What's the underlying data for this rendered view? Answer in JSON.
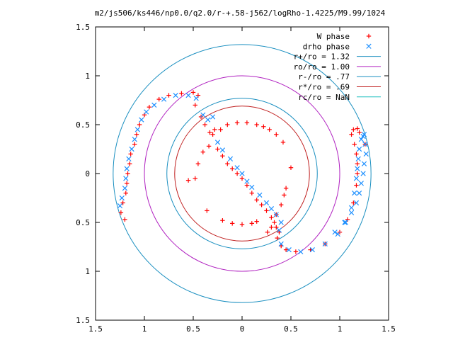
{
  "chart_data": {
    "type": "scatter",
    "title": "m2/js506/ks446/np0.0/q2.0/r-+.58-j562/logRho-1.4225/M9.99/1024",
    "xlim": [
      -1.5,
      1.5
    ],
    "ylim": [
      -1.5,
      1.5
    ],
    "x_ticks": [
      -1.5,
      -1,
      -0.5,
      0,
      0.5,
      1,
      1.5
    ],
    "x_tick_labels": [
      "1.5",
      "1",
      "0.5",
      "0",
      "0.5",
      "1",
      "1.5"
    ],
    "y_ticks": [
      1.5,
      1,
      0.5,
      0,
      -0.5,
      -1,
      -1.5
    ],
    "y_tick_labels": [
      "1.5",
      "1",
      "0.5",
      "0",
      "0.5",
      "1",
      "1.5"
    ],
    "grid": false,
    "legend_position": "top-right",
    "point_series": [
      {
        "name": "W phase",
        "marker": "+",
        "color": "#ff0000",
        "points": [
          [
            -1.2,
            -0.47
          ],
          [
            -1.24,
            -0.4
          ],
          [
            -1.22,
            -0.3
          ],
          [
            -1.19,
            -0.2
          ],
          [
            -1.18,
            -0.1
          ],
          [
            -1.17,
            0.0
          ],
          [
            -1.15,
            0.1
          ],
          [
            -1.14,
            0.2
          ],
          [
            -1.1,
            0.3
          ],
          [
            -1.08,
            0.4
          ],
          [
            -1.05,
            0.5
          ],
          [
            -1.0,
            0.6
          ],
          [
            -0.95,
            0.68
          ],
          [
            -0.85,
            0.76
          ],
          [
            -0.75,
            0.8
          ],
          [
            -0.62,
            0.82
          ],
          [
            -0.5,
            0.83
          ],
          [
            -0.45,
            0.8
          ],
          [
            -0.48,
            0.7
          ],
          [
            -0.42,
            0.58
          ],
          [
            -0.38,
            0.5
          ],
          [
            -0.33,
            0.42
          ],
          [
            -0.25,
            0.25
          ],
          [
            -0.2,
            0.18
          ],
          [
            -0.15,
            0.1
          ],
          [
            -0.1,
            0.05
          ],
          [
            -0.05,
            0.0
          ],
          [
            0.0,
            -0.05
          ],
          [
            0.05,
            -0.12
          ],
          [
            0.1,
            -0.2
          ],
          [
            0.15,
            -0.27
          ],
          [
            0.2,
            -0.32
          ],
          [
            0.25,
            -0.38
          ],
          [
            0.3,
            -0.45
          ],
          [
            0.33,
            -0.5
          ],
          [
            0.3,
            -0.55
          ],
          [
            0.26,
            -0.6
          ],
          [
            -0.28,
            0.45
          ],
          [
            -0.3,
            0.4
          ],
          [
            -0.34,
            0.28
          ],
          [
            -0.4,
            0.22
          ],
          [
            -0.45,
            0.1
          ],
          [
            -0.48,
            -0.05
          ],
          [
            -0.55,
            -0.07
          ],
          [
            -0.22,
            0.45
          ],
          [
            -0.15,
            0.5
          ],
          [
            -0.05,
            0.52
          ],
          [
            0.05,
            0.52
          ],
          [
            0.15,
            0.5
          ],
          [
            0.22,
            0.48
          ],
          [
            0.28,
            0.45
          ],
          [
            0.35,
            0.4
          ],
          [
            0.42,
            0.32
          ],
          [
            0.5,
            0.06
          ],
          [
            0.45,
            -0.15
          ],
          [
            0.43,
            -0.22
          ],
          [
            0.4,
            -0.32
          ],
          [
            0.35,
            -0.42
          ],
          [
            -0.36,
            -0.38
          ],
          [
            -0.2,
            -0.48
          ],
          [
            -0.1,
            -0.51
          ],
          [
            0.0,
            -0.52
          ],
          [
            0.1,
            -0.51
          ],
          [
            0.15,
            -0.49
          ],
          [
            0.35,
            -0.55
          ],
          [
            0.38,
            -0.6
          ],
          [
            0.36,
            -0.66
          ],
          [
            0.4,
            -0.74
          ],
          [
            0.45,
            -0.78
          ],
          [
            0.55,
            -0.8
          ],
          [
            0.7,
            -0.78
          ],
          [
            0.85,
            -0.72
          ],
          [
            1.0,
            -0.6
          ],
          [
            1.08,
            -0.47
          ],
          [
            1.14,
            -0.3
          ],
          [
            1.17,
            -0.12
          ],
          [
            1.18,
            0.0
          ],
          [
            1.18,
            0.1
          ],
          [
            1.17,
            0.2
          ],
          [
            1.15,
            0.3
          ],
          [
            1.12,
            0.4
          ],
          [
            1.14,
            0.45
          ],
          [
            1.18,
            0.46
          ],
          [
            1.2,
            0.42
          ],
          [
            1.26,
            0.3
          ]
        ]
      },
      {
        "name": "drho phase",
        "marker": "x",
        "color": "#1e90ff",
        "points": [
          [
            -1.25,
            -0.33
          ],
          [
            -1.23,
            -0.25
          ],
          [
            -1.2,
            -0.15
          ],
          [
            -1.19,
            -0.05
          ],
          [
            -1.18,
            0.05
          ],
          [
            -1.16,
            0.15
          ],
          [
            -1.13,
            0.25
          ],
          [
            -1.1,
            0.35
          ],
          [
            -1.07,
            0.45
          ],
          [
            -1.03,
            0.55
          ],
          [
            -0.98,
            0.63
          ],
          [
            -0.9,
            0.7
          ],
          [
            -0.8,
            0.76
          ],
          [
            -0.68,
            0.8
          ],
          [
            -0.55,
            0.8
          ],
          [
            -0.47,
            0.77
          ],
          [
            -0.4,
            0.6
          ],
          [
            -0.35,
            0.55
          ],
          [
            -0.3,
            0.58
          ],
          [
            -0.25,
            0.32
          ],
          [
            -0.2,
            0.24
          ],
          [
            -0.12,
            0.15
          ],
          [
            -0.05,
            0.06
          ],
          [
            0.0,
            0.0
          ],
          [
            0.05,
            -0.08
          ],
          [
            0.1,
            -0.14
          ],
          [
            0.18,
            -0.22
          ],
          [
            0.25,
            -0.3
          ],
          [
            0.3,
            -0.36
          ],
          [
            0.35,
            -0.42
          ],
          [
            0.4,
            -0.5
          ],
          [
            0.38,
            -0.58
          ],
          [
            0.4,
            -0.72
          ],
          [
            0.48,
            -0.78
          ],
          [
            0.6,
            -0.8
          ],
          [
            0.72,
            -0.78
          ],
          [
            0.85,
            -0.72
          ],
          [
            0.98,
            -0.62
          ],
          [
            1.06,
            -0.5
          ],
          [
            1.12,
            -0.35
          ],
          [
            1.15,
            -0.2
          ],
          [
            1.17,
            -0.05
          ],
          [
            1.18,
            0.05
          ],
          [
            1.19,
            0.15
          ],
          [
            1.2,
            0.25
          ],
          [
            1.22,
            0.35
          ],
          [
            1.24,
            0.38
          ],
          [
            1.25,
            0.4
          ],
          [
            1.26,
            0.3
          ],
          [
            1.27,
            0.2
          ],
          [
            1.25,
            0.1
          ],
          [
            1.24,
            0.0
          ],
          [
            1.22,
            -0.1
          ],
          [
            1.2,
            -0.2
          ],
          [
            1.17,
            -0.3
          ],
          [
            1.12,
            -0.4
          ],
          [
            1.05,
            -0.5
          ],
          [
            0.95,
            -0.6
          ]
        ]
      }
    ],
    "circle_series": [
      {
        "name": "r+/ro = 1.32",
        "radius": 1.32,
        "color": "#1a8fc0"
      },
      {
        "name": "ro/ro = 1.00",
        "radius": 1.0,
        "color": "#b020c0"
      },
      {
        "name": "r-/ro = .77",
        "radius": 0.77,
        "color": "#1a8fc0"
      },
      {
        "name": "r*/ro = .69",
        "radius": 0.69,
        "color": "#c02020"
      },
      {
        "name": "rc/ro = NaN",
        "radius": null,
        "color": "#20c0c0"
      }
    ]
  }
}
